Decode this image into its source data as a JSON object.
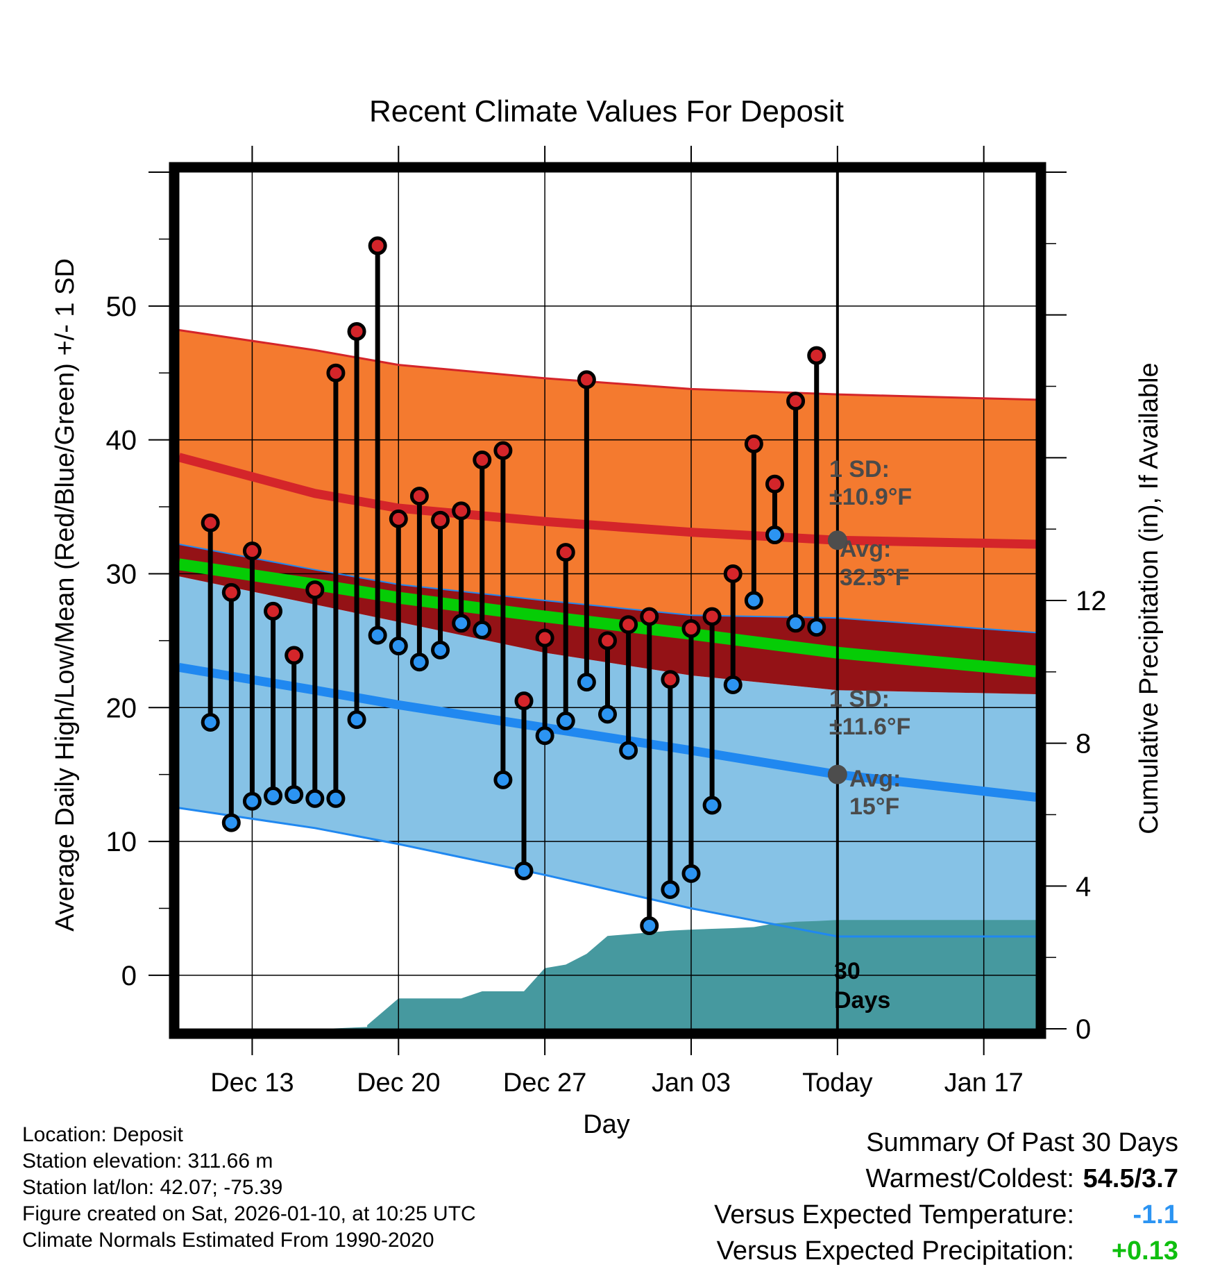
{
  "chart_data": {
    "type": "line",
    "title": "Recent Climate Values For Deposit",
    "xlabel": "Day",
    "ylabel": "Average Daily High/Low/Mean (Red/Blue/Green) +/- 1 SD",
    "y2label": "Cumulative Precipitation (in), If Available",
    "ylim": [
      -4,
      60
    ],
    "y2lim": [
      0,
      24
    ],
    "yticks": [
      0,
      10,
      20,
      30,
      40,
      50
    ],
    "y2ticks": [
      0,
      4,
      8,
      12
    ],
    "xlim": [
      -3.5,
      37.5
    ],
    "xticks": [
      {
        "day": 0,
        "label": "Dec 13"
      },
      {
        "day": 7,
        "label": "Dec 20"
      },
      {
        "day": 14,
        "label": "Dec 27"
      },
      {
        "day": 21,
        "label": "Jan 03"
      },
      {
        "day": 28,
        "label": "Today"
      },
      {
        "day": 35,
        "label": "Jan 17"
      }
    ],
    "daily": {
      "day": [
        -2,
        -1,
        0,
        1,
        2,
        3,
        4,
        5,
        6,
        7,
        8,
        9,
        10,
        11,
        12,
        13,
        14,
        15,
        16,
        17,
        18,
        19,
        20,
        21,
        22,
        23,
        24,
        25,
        26,
        27
      ],
      "high": [
        33.8,
        28.6,
        31.7,
        27.2,
        23.9,
        28.8,
        45,
        48.1,
        54.5,
        34.1,
        35.8,
        34,
        34.7,
        38.5,
        39.2,
        20.5,
        25.2,
        31.6,
        44.5,
        25,
        26.2,
        26.8,
        22.1,
        25.9,
        26.8,
        30,
        39.7,
        36.7,
        42.9,
        46.3
      ],
      "low": [
        18.9,
        11.4,
        13,
        13.4,
        13.5,
        13.2,
        13.2,
        19.1,
        25.4,
        24.6,
        23.4,
        24.3,
        26.3,
        25.8,
        14.6,
        7.8,
        17.9,
        19,
        21.9,
        19.5,
        16.8,
        3.7,
        6.4,
        7.6,
        12.7,
        21.7,
        28,
        32.9,
        26.3,
        26
      ]
    },
    "normals": {
      "day": [
        -3.5,
        3,
        7,
        14,
        21,
        28,
        37.5
      ],
      "high_avg": [
        38.7,
        36,
        34.9,
        33.9,
        33.1,
        32.5,
        32.2
      ],
      "high_plus_sd": [
        48.2,
        46.7,
        45.6,
        44.6,
        43.8,
        43.4,
        43
      ],
      "mean": [
        30.7,
        29.2,
        28.2,
        26.8,
        25.5,
        24.1,
        22.7
      ],
      "low_avg": [
        23,
        21.3,
        20.2,
        18.5,
        16.8,
        15,
        13.3
      ],
      "low_minus_sd": [
        12.5,
        11,
        9.8,
        7.5,
        5,
        2.9,
        2.9
      ],
      "high_minus_sd": [
        32.2,
        30.3,
        29.2,
        28,
        26.9,
        26.7,
        25.6
      ],
      "low_plus_sd": [
        29.8,
        27.7,
        26.4,
        24.1,
        22.4,
        21.3,
        21
      ]
    },
    "precip_cumulative": {
      "day": [
        -3.5,
        3.5,
        5.5,
        5.5,
        7,
        8,
        9,
        10,
        11,
        12,
        13,
        14,
        15,
        16,
        17,
        18,
        19,
        20,
        21,
        22,
        23,
        24,
        25,
        26,
        27,
        28,
        37.5
      ],
      "value": [
        0,
        0,
        0.05,
        0.1,
        0.85,
        0.85,
        0.85,
        0.85,
        1.05,
        1.05,
        1.05,
        1.7,
        1.8,
        2.1,
        2.6,
        2.65,
        2.7,
        2.75,
        2.78,
        2.8,
        2.82,
        2.85,
        2.95,
        3,
        3.02,
        3.05,
        3.05
      ]
    },
    "annotations": {
      "high_sd_label": "1 SD:",
      "high_sd_value": "±10.9°F",
      "high_avg_label": "Avg:",
      "high_avg_value": "32.5°F",
      "low_sd_label": "1 SD:",
      "low_sd_value": "±11.6°F",
      "low_avg_label": "Avg:",
      "low_avg_value": "15°F",
      "period_num": "30",
      "period_unit": "Days"
    },
    "colors": {
      "high_band": "#f47a2f",
      "high_line": "#d4252a",
      "low_band": "#86c2e6",
      "low_line": "#2088f0",
      "mean_line": "#06cc06",
      "overlap": "#941216",
      "precip": "#46999f",
      "high_dot": "#d4252a",
      "low_dot": "#2c94f2",
      "avg_dot": "#4d4d4d"
    }
  },
  "info": {
    "location": "Location: Deposit",
    "elevation": "Station elevation: 311.66 m",
    "latlon": "Station lat/lon: 42.07; -75.39",
    "created": "Figure created on Sat, 2026-01-10, at 10:25 UTC",
    "normals": "Climate Normals Estimated From 1990-2020"
  },
  "summary": {
    "title": "Summary Of Past 30 Days",
    "warm_cold_label": "Warmest/Coldest:",
    "warm_cold_value": "54.5/3.7",
    "temp_label": "Versus Expected Temperature:",
    "temp_value": "-1.1",
    "temp_color": "#2c94f2",
    "precip_label": "Versus Expected Precipitation:",
    "precip_value": "+0.13",
    "precip_color": "#0fbf0f"
  }
}
